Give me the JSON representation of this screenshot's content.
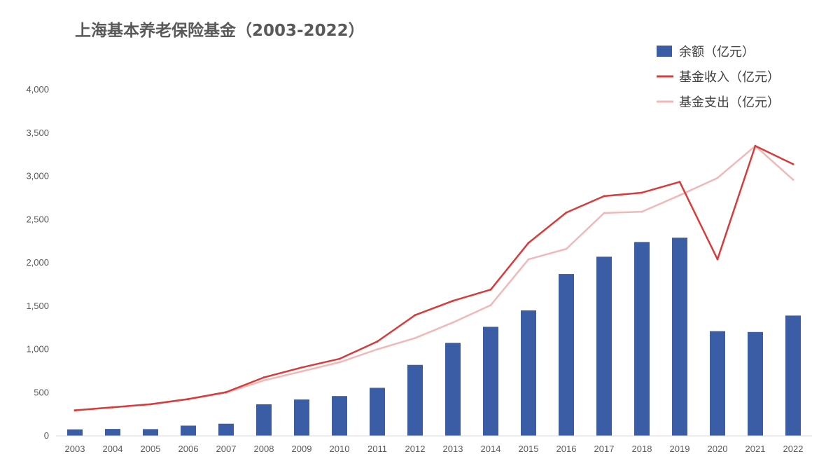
{
  "chart_data": {
    "type": "bar",
    "title": "上海基本养老保险基金（2003-2022）",
    "xlabel": "",
    "ylabel": "",
    "ylim": [
      0,
      4000
    ],
    "yticks": [
      0,
      500,
      1000,
      1500,
      2000,
      2500,
      3000,
      3500,
      4000
    ],
    "ytick_labels": [
      "0",
      "500",
      "1,000",
      "1,500",
      "2,000",
      "2,500",
      "3,000",
      "3,500",
      "4,000"
    ],
    "grid": false,
    "legend_position": "top-right",
    "categories": [
      "2003",
      "2004",
      "2005",
      "2006",
      "2007",
      "2008",
      "2009",
      "2010",
      "2011",
      "2012",
      "2013",
      "2014",
      "2015",
      "2016",
      "2017",
      "2018",
      "2019",
      "2020",
      "2021",
      "2022"
    ],
    "series": [
      {
        "name": "余额（亿元）",
        "kind": "bar",
        "color": "#3a5da5",
        "values": [
          75,
          80,
          78,
          118,
          140,
          365,
          420,
          460,
          555,
          820,
          1075,
          1260,
          1450,
          1870,
          2070,
          2240,
          2290,
          1210,
          1200,
          1390
        ]
      },
      {
        "name": "基金收入（亿元）",
        "kind": "line",
        "color": "#d93b3b",
        "values": [
          295,
          330,
          365,
          425,
          505,
          675,
          790,
          890,
          1090,
          1395,
          1560,
          1690,
          2230,
          2580,
          2770,
          2810,
          2935,
          2040,
          3350,
          3140
        ]
      },
      {
        "name": "基金支出（亿元）",
        "kind": "line",
        "color": "#f2b8b8",
        "values": [
          295,
          330,
          365,
          425,
          500,
          640,
          745,
          850,
          1000,
          1130,
          1310,
          1510,
          2040,
          2160,
          2575,
          2590,
          2780,
          2980,
          3350,
          2960
        ]
      }
    ]
  }
}
